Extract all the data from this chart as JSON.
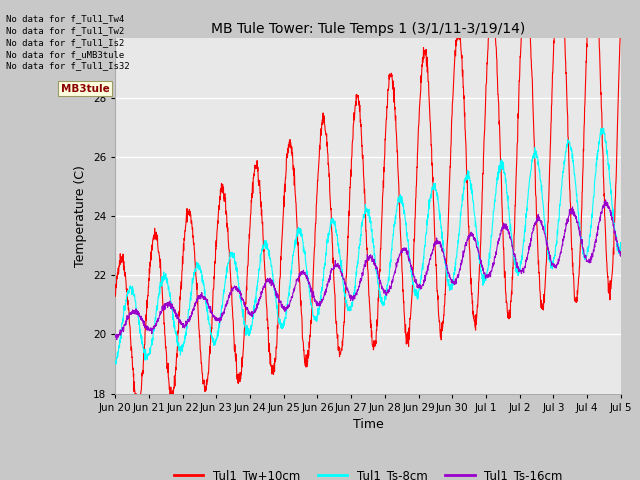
{
  "title": "MB Tule Tower: Tule Temps 1 (3/1/11-3/19/14)",
  "xlabel": "Time",
  "ylabel": "Temperature (C)",
  "ylim": [
    18,
    30
  ],
  "yticks": [
    18,
    20,
    22,
    24,
    26,
    28
  ],
  "plot_bg_color": "#e8e8e8",
  "fig_bg_color": "#d8d8d8",
  "no_data_lines": [
    "No data for f_Tul1_Tw4",
    "No data for f_Tul1_Tw2",
    "No data for f_Tul1_Is2",
    "No data for f_uMB3tule",
    "No data for f_Tul1_Is32"
  ],
  "legend_entries": [
    {
      "label": "Tul1_Tw+10cm",
      "color": "#ff0000"
    },
    {
      "label": "Tul1_Ts-8cm",
      "color": "#00ffff"
    },
    {
      "label": "Tul1_Ts-16cm",
      "color": "#9900cc"
    }
  ],
  "x_tick_labels": [
    "Jun 20",
    "Jun 21",
    "Jun 22",
    "Jun 23",
    "Jun 24",
    "Jun 25",
    "Jun 26",
    "Jun 27",
    "Jun 28",
    "Jun 29",
    "Jun 30",
    "Jul 1",
    "Jul 2",
    "Jul 3",
    "Jul 4",
    "Jul 5"
  ],
  "colors": {
    "red": "#ff0000",
    "cyan": "#00ffff",
    "purple": "#9900cc"
  },
  "tooltip_text": "MB3tule"
}
